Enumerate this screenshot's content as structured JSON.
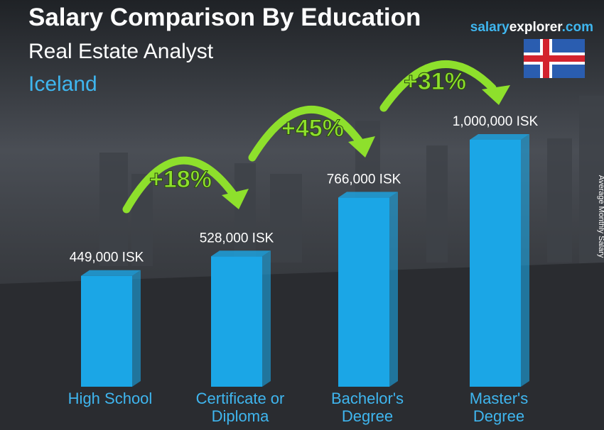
{
  "chart_data": {
    "type": "bar3d",
    "title": "Salary Comparison By Education",
    "subtitle": "Real Estate Analyst",
    "country": "Iceland",
    "brand": [
      "salary",
      "explorer",
      ".com"
    ],
    "y_label": "Average Monthly Salary",
    "categories": [
      "High School",
      "Certificate or Diploma",
      "Bachelor's Degree",
      "Master's Degree"
    ],
    "values": [
      449000,
      528000,
      766000,
      1000000
    ],
    "value_labels": [
      "449,000 ISK",
      "528,000 ISK",
      "766,000 ISK",
      "1,000,000 ISK"
    ],
    "color": "#1ba6e6",
    "annotations": [
      "+18%",
      "+45%",
      "+31%"
    ],
    "annotation_color": "#8ee02c"
  }
}
